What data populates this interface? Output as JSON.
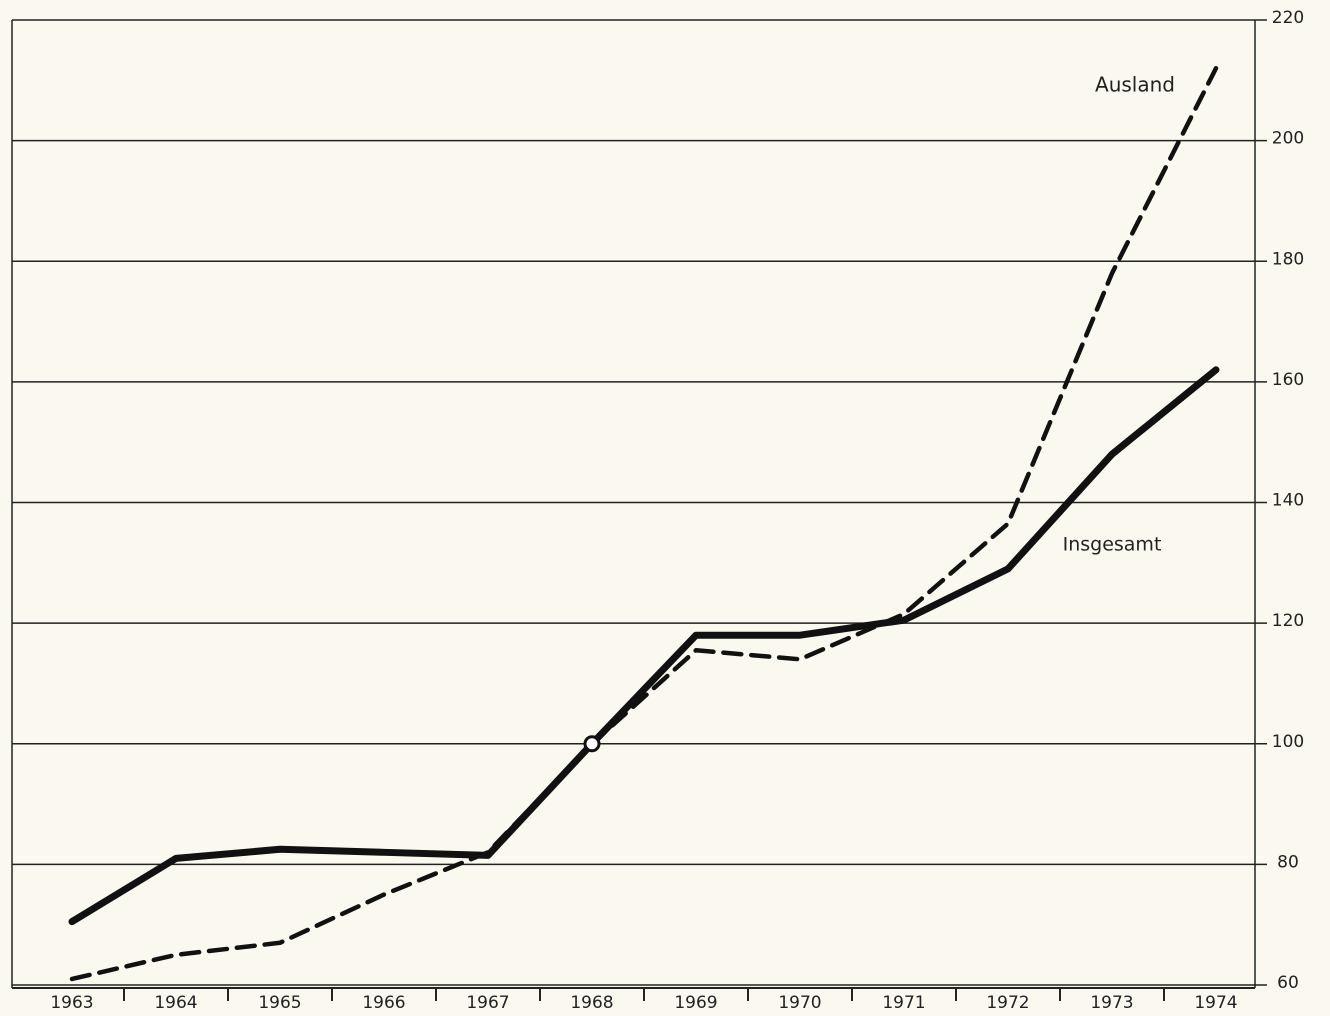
{
  "chart_data": {
    "type": "line",
    "categories": [
      "1963",
      "1964",
      "1965",
      "1966",
      "1967",
      "1968",
      "1969",
      "1970",
      "1971",
      "1972",
      "1973",
      "1974"
    ],
    "series": [
      {
        "name": "Insgesamt",
        "color": "#111111",
        "dash": false,
        "values": [
          70.5,
          81,
          82.5,
          82,
          81.5,
          100,
          118,
          118,
          120.5,
          129,
          148,
          162
        ]
      },
      {
        "name": "Ausland",
        "color": "#111111",
        "dash": true,
        "values": [
          61,
          65,
          67,
          75,
          82,
          100,
          115.5,
          114,
          121.5,
          136.5,
          178,
          212
        ]
      }
    ],
    "ylim": [
      60,
      220
    ],
    "yticks": [
      60,
      80,
      100,
      120,
      140,
      160,
      180,
      200,
      220
    ],
    "grid": true
  }
}
